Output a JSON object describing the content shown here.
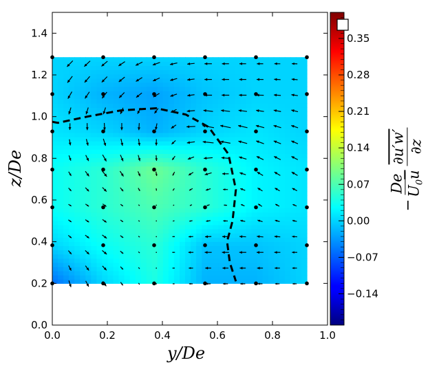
{
  "chart_data": {
    "type": "heatmap",
    "subtype": "filled contour with quiver overlay",
    "xlabel": "y/De",
    "ylabel": "z/De",
    "xlim": [
      0.0,
      1.0
    ],
    "ylim": [
      0.0,
      1.5
    ],
    "xticks": [
      "0.0",
      "0.2",
      "0.4",
      "0.6",
      "0.8",
      "1.0"
    ],
    "yticks": [
      "0.0",
      "0.2",
      "0.4",
      "0.6",
      "0.8",
      "1.0",
      "1.2",
      "1.4"
    ],
    "colormap": "jet",
    "colorbar": {
      "range": [
        -0.2,
        0.4
      ],
      "ticks": [
        "−0.14",
        "−0.07",
        "0.00",
        "0.07",
        "0.14",
        "0.21",
        "0.28",
        "0.35"
      ],
      "tick_values": [
        -0.14,
        -0.07,
        0.0,
        0.07,
        0.14,
        0.21,
        0.28,
        0.35
      ],
      "label": {
        "sign": "−",
        "left_num": "De",
        "left_den_a": "U",
        "left_den_sub": "0",
        "left_den_b": "u",
        "right_num": "∂u′w′",
        "right_den": "∂z"
      }
    },
    "grid_y": [
      0.0,
      0.185,
      0.37,
      0.555,
      0.74,
      0.925
    ],
    "grid_z": [
      0.2,
      0.383,
      0.565,
      0.746,
      0.929,
      1.108,
      1.285
    ],
    "field_values": [
      [
        -0.06,
        0.0,
        0.04,
        -0.02,
        -0.02,
        0.0
      ],
      [
        0.0,
        0.03,
        0.05,
        -0.01,
        -0.01,
        0.0
      ],
      [
        0.03,
        0.05,
        0.07,
        0.05,
        0.02,
        0.01
      ],
      [
        0.03,
        0.05,
        0.09,
        0.05,
        0.02,
        0.01
      ],
      [
        0.01,
        0.0,
        -0.02,
        0.0,
        0.01,
        0.0
      ],
      [
        0.0,
        -0.02,
        -0.03,
        -0.01,
        0.0,
        0.0
      ],
      [
        0.0,
        0.0,
        0.0,
        0.0,
        0.0,
        0.0
      ]
    ],
    "vectors": [
      [
        [
          0.1,
          -0.6
        ],
        [
          0.3,
          -0.4
        ],
        [
          0,
          0
        ],
        [
          -0.4,
          0
        ],
        [
          -0.4,
          0
        ],
        [
          -0.3,
          0
        ]
      ],
      [
        [
          0.2,
          -0.2
        ],
        [
          0.4,
          -0.3
        ],
        [
          0,
          0
        ],
        [
          -0.6,
          0
        ],
        [
          -0.6,
          0
        ],
        [
          -0.4,
          0
        ]
      ],
      [
        [
          0.2,
          -0.1
        ],
        [
          0.3,
          -0.2
        ],
        [
          0,
          0
        ],
        [
          -0.2,
          -0.1
        ],
        [
          -0.3,
          0.2
        ],
        [
          -0.3,
          0.1
        ]
      ],
      [
        [
          0.1,
          -0.3
        ],
        [
          0.4,
          -0.5
        ],
        [
          0.1,
          -0.4
        ],
        [
          -0.6,
          -0.2
        ],
        [
          -0.5,
          0.3
        ],
        [
          -0.5,
          0.3
        ]
      ],
      [
        [
          0,
          -0.5
        ],
        [
          0.1,
          -0.6
        ],
        [
          0,
          -0.6
        ],
        [
          -1.0,
          0.2
        ],
        [
          -0.7,
          0.2
        ],
        [
          -0.5,
          0.2
        ]
      ],
      [
        [
          -0.3,
          -0.6
        ],
        [
          -0.4,
          -0.5
        ],
        [
          -0.5,
          -0.3
        ],
        [
          -0.6,
          0
        ],
        [
          -0.6,
          0
        ],
        [
          -0.5,
          0.1
        ]
      ],
      [
        [
          -0.5,
          -0.5
        ],
        [
          -0.5,
          -0.4
        ],
        [
          -0.6,
          -0.2
        ],
        [
          -0.6,
          0
        ],
        [
          -0.5,
          0
        ],
        [
          -0.4,
          0
        ]
      ]
    ],
    "dashed_boundary": [
      [
        0.0,
        0.975
      ],
      [
        0.02,
        0.97
      ],
      [
        0.127,
        1.0
      ],
      [
        0.25,
        1.03
      ],
      [
        0.378,
        1.04
      ],
      [
        0.485,
        1.01
      ],
      [
        0.568,
        0.95
      ],
      [
        0.64,
        0.82
      ],
      [
        0.667,
        0.65
      ],
      [
        0.655,
        0.5
      ],
      [
        0.635,
        0.4
      ],
      [
        0.645,
        0.3
      ],
      [
        0.667,
        0.21
      ]
    ]
  }
}
